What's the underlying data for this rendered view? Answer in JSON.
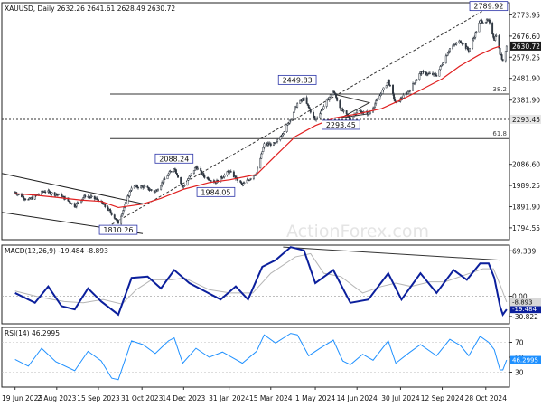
{
  "chart_data": [
    {
      "panel": "price",
      "type": "candlestick",
      "header": {
        "symbol": "XAUUSD",
        "timeframe": "Daily",
        "ohlc": "2632.26 2641.61 2628.49 2630.72",
        "text": "XAUUSD, Daily  2632.26 2641.61 2628.49 2630.72"
      },
      "watermark": "ActionForex.com",
      "y_axis": {
        "ylim": [
          1740,
          2830
        ],
        "ticks": [
          "2773.95",
          "2676.60",
          "2579.25",
          "2481.90",
          "2381.90",
          "2086.60",
          "1989.25",
          "1891.90",
          "1794.55"
        ],
        "tick_values": [
          2773.95,
          2676.6,
          2579.25,
          2481.9,
          2381.9,
          2086.6,
          1989.25,
          1891.9,
          1794.55
        ],
        "price_tags": [
          {
            "label": "2630.72",
            "value": 2630.72,
            "style": "dark"
          },
          {
            "label": "2293.45",
            "value": 2293.45,
            "style": "light"
          }
        ]
      },
      "key_levels": [
        {
          "label": "38.2",
          "value": 2410
        },
        {
          "label": "2293.45",
          "value": 2293.45
        },
        {
          "label": "61.8",
          "value": 2205
        }
      ],
      "annotations": [
        {
          "label": "2789.92",
          "date": "2024-10-31",
          "value": 2789.92
        },
        {
          "label": "2449.83",
          "date": "2024-04-12",
          "value": 2449.83
        },
        {
          "label": "2293.45",
          "date": "2024-05-28",
          "value": 2293.45
        },
        {
          "label": "2088.24",
          "date": "2023-12-04",
          "value": 2088.24
        },
        {
          "label": "1984.05",
          "date": "2024-01-17",
          "value": 1984.05
        },
        {
          "label": "1810.26",
          "date": "2023-10-06",
          "value": 1810.26
        }
      ],
      "series": [
        {
          "color": "#e02020",
          "points": [
            [
              "2023-06-19",
              1952
            ],
            [
              "2023-07-10",
              1945
            ],
            [
              "2023-08-01",
              1935
            ],
            [
              "2023-08-28",
              1922
            ],
            [
              "2023-09-18",
              1916
            ],
            [
              "2023-10-06",
              1888
            ],
            [
              "2023-10-31",
              1903
            ],
            [
              "2023-11-20",
              1930
            ],
            [
              "2023-12-14",
              1972
            ],
            [
              "2024-01-10",
              2003
            ],
            [
              "2024-02-01",
              2016
            ],
            [
              "2024-02-29",
              2040
            ],
            [
              "2024-03-20",
              2126
            ],
            [
              "2024-04-10",
              2215
            ],
            [
              "2024-05-01",
              2265
            ],
            [
              "2024-05-21",
              2300
            ],
            [
              "2024-06-14",
              2318
            ],
            [
              "2024-07-10",
              2343
            ],
            [
              "2024-07-30",
              2382
            ],
            [
              "2024-08-21",
              2430
            ],
            [
              "2024-09-12",
              2480
            ],
            [
              "2024-10-01",
              2540
            ],
            [
              "2024-10-21",
              2590
            ],
            [
              "2024-11-05",
              2620
            ],
            [
              "2024-11-12",
              2630
            ]
          ]
        },
        {
          "color": "#5f6b7a",
          "points": [
            [
              "2023-06-19",
              1958
            ],
            [
              "2023-07-03",
              1922
            ],
            [
              "2023-07-20",
              1964
            ],
            [
              "2023-08-07",
              1941
            ],
            [
              "2023-08-21",
              1896
            ],
            [
              "2023-09-01",
              1942
            ],
            [
              "2023-09-15",
              1924
            ],
            [
              "2023-09-28",
              1866
            ],
            [
              "2023-10-06",
              1818
            ],
            [
              "2023-10-20",
              1982
            ],
            [
              "2023-11-01",
              1984
            ],
            [
              "2023-11-14",
              1960
            ],
            [
              "2023-11-28",
              2042
            ],
            [
              "2023-12-04",
              2072
            ],
            [
              "2023-12-13",
              1980
            ],
            [
              "2023-12-27",
              2075
            ],
            [
              "2024-01-05",
              2030
            ],
            [
              "2024-01-17",
              2005
            ],
            [
              "2024-01-31",
              2055
            ],
            [
              "2024-02-14",
              1992
            ],
            [
              "2024-02-29",
              2048
            ],
            [
              "2024-03-08",
              2178
            ],
            [
              "2024-03-20",
              2180
            ],
            [
              "2024-04-01",
              2262
            ],
            [
              "2024-04-12",
              2365
            ],
            [
              "2024-04-19",
              2388
            ],
            [
              "2024-05-01",
              2290
            ],
            [
              "2024-05-20",
              2425
            ],
            [
              "2024-05-28",
              2340
            ],
            [
              "2024-06-07",
              2295
            ],
            [
              "2024-06-14",
              2332
            ],
            [
              "2024-06-27",
              2320
            ],
            [
              "2024-07-17",
              2470
            ],
            [
              "2024-07-25",
              2365
            ],
            [
              "2024-08-08",
              2425
            ],
            [
              "2024-08-20",
              2508
            ],
            [
              "2024-09-06",
              2497
            ],
            [
              "2024-09-20",
              2620
            ],
            [
              "2024-10-01",
              2655
            ],
            [
              "2024-10-10",
              2610
            ],
            [
              "2024-10-22",
              2745
            ],
            [
              "2024-10-31",
              2745
            ],
            [
              "2024-11-06",
              2662
            ],
            [
              "2024-11-08",
              2685
            ],
            [
              "2024-11-12",
              2595
            ],
            [
              "2024-11-14",
              2575
            ],
            [
              "2024-11-15",
              2565
            ],
            [
              "2024-11-19",
              2630
            ]
          ]
        }
      ]
    },
    {
      "panel": "macd",
      "type": "line",
      "label": "MACD(12,26,9) -19.484 -8.893",
      "y_axis": {
        "ylim": [
          -42,
          78
        ],
        "ticks": [
          "69.339",
          "0.00",
          "-30.822"
        ],
        "tick_values": [
          69.339,
          0,
          -30.822
        ],
        "price_tags": [
          {
            "label": "-19.484",
            "value": -19.484
          },
          {
            "label": "-8.893",
            "value": -8.893
          }
        ]
      },
      "series": [
        {
          "color": "#0b1f9c",
          "points": [
            [
              "2023-06-19",
              5
            ],
            [
              "2023-07-10",
              -10
            ],
            [
              "2023-07-24",
              15
            ],
            [
              "2023-08-07",
              -15
            ],
            [
              "2023-08-21",
              -20
            ],
            [
              "2023-09-04",
              12
            ],
            [
              "2023-09-18",
              -8
            ],
            [
              "2023-10-06",
              -28
            ],
            [
              "2023-10-20",
              28
            ],
            [
              "2023-11-06",
              30
            ],
            [
              "2023-11-20",
              12
            ],
            [
              "2023-12-04",
              40
            ],
            [
              "2023-12-20",
              20
            ],
            [
              "2024-01-05",
              8
            ],
            [
              "2024-01-22",
              -5
            ],
            [
              "2024-02-07",
              15
            ],
            [
              "2024-02-20",
              -5
            ],
            [
              "2024-03-06",
              45
            ],
            [
              "2024-03-20",
              55
            ],
            [
              "2024-04-05",
              75
            ],
            [
              "2024-04-19",
              70
            ],
            [
              "2024-05-01",
              20
            ],
            [
              "2024-05-20",
              40
            ],
            [
              "2024-06-07",
              -10
            ],
            [
              "2024-06-26",
              -5
            ],
            [
              "2024-07-17",
              35
            ],
            [
              "2024-07-31",
              -5
            ],
            [
              "2024-08-20",
              35
            ],
            [
              "2024-09-06",
              5
            ],
            [
              "2024-09-24",
              40
            ],
            [
              "2024-10-08",
              25
            ],
            [
              "2024-10-22",
              50
            ],
            [
              "2024-10-31",
              50
            ],
            [
              "2024-11-06",
              28
            ],
            [
              "2024-11-12",
              -15
            ],
            [
              "2024-11-15",
              -28
            ],
            [
              "2024-11-19",
              -20
            ]
          ]
        },
        {
          "color": "#b5b5b5",
          "points": [
            [
              "2023-06-19",
              8
            ],
            [
              "2023-07-17",
              -2
            ],
            [
              "2023-08-10",
              -8
            ],
            [
              "2023-08-30",
              -10
            ],
            [
              "2023-09-20",
              -5
            ],
            [
              "2023-10-10",
              -12
            ],
            [
              "2023-10-25",
              10
            ],
            [
              "2023-11-10",
              25
            ],
            [
              "2023-12-01",
              25
            ],
            [
              "2023-12-15",
              28
            ],
            [
              "2024-01-10",
              10
            ],
            [
              "2024-02-01",
              5
            ],
            [
              "2024-02-25",
              5
            ],
            [
              "2024-03-15",
              35
            ],
            [
              "2024-04-10",
              60
            ],
            [
              "2024-04-26",
              65
            ],
            [
              "2024-05-10",
              35
            ],
            [
              "2024-05-28",
              30
            ],
            [
              "2024-06-20",
              5
            ],
            [
              "2024-07-10",
              15
            ],
            [
              "2024-07-25",
              20
            ],
            [
              "2024-08-10",
              15
            ],
            [
              "2024-08-30",
              22
            ],
            [
              "2024-09-15",
              22
            ],
            [
              "2024-10-01",
              30
            ],
            [
              "2024-10-25",
              42
            ],
            [
              "2024-11-05",
              42
            ],
            [
              "2024-11-12",
              18
            ],
            [
              "2024-11-19",
              -8.893
            ]
          ]
        }
      ],
      "trendline": [
        [
          "2024-03-28",
          75
        ],
        [
          "2024-11-12",
          55
        ]
      ]
    },
    {
      "panel": "rsi",
      "type": "line",
      "label": "RSI(14) 46.2995",
      "y_axis": {
        "ylim": [
          10,
          90
        ],
        "ticks": [
          "70",
          "50",
          "30"
        ],
        "tick_values": [
          70,
          50,
          30
        ],
        "price_tags": [
          {
            "label": "46.2995",
            "value": 46.2995
          }
        ]
      },
      "series": [
        {
          "color": "#1e90ff",
          "points": [
            [
              "2023-06-19",
              47
            ],
            [
              "2023-07-03",
              38
            ],
            [
              "2023-07-17",
              62
            ],
            [
              "2023-08-01",
              44
            ],
            [
              "2023-08-21",
              32
            ],
            [
              "2023-09-04",
              58
            ],
            [
              "2023-09-18",
              45
            ],
            [
              "2023-09-29",
              22
            ],
            [
              "2023-10-06",
              20
            ],
            [
              "2023-10-20",
              72
            ],
            [
              "2023-11-01",
              67
            ],
            [
              "2023-11-14",
              55
            ],
            [
              "2023-11-28",
              72
            ],
            [
              "2023-12-04",
              76
            ],
            [
              "2023-12-13",
              42
            ],
            [
              "2023-12-27",
              62
            ],
            [
              "2024-01-10",
              50
            ],
            [
              "2024-01-24",
              57
            ],
            [
              "2024-02-14",
              42
            ],
            [
              "2024-02-29",
              58
            ],
            [
              "2024-03-08",
              80
            ],
            [
              "2024-03-20",
              69
            ],
            [
              "2024-04-05",
              82
            ],
            [
              "2024-04-12",
              80
            ],
            [
              "2024-04-24",
              52
            ],
            [
              "2024-05-06",
              62
            ],
            [
              "2024-05-20",
              73
            ],
            [
              "2024-05-30",
              45
            ],
            [
              "2024-06-07",
              40
            ],
            [
              "2024-06-20",
              54
            ],
            [
              "2024-07-01",
              46
            ],
            [
              "2024-07-17",
              72
            ],
            [
              "2024-07-25",
              42
            ],
            [
              "2024-08-08",
              56
            ],
            [
              "2024-08-20",
              67
            ],
            [
              "2024-09-06",
              52
            ],
            [
              "2024-09-20",
              74
            ],
            [
              "2024-10-01",
              66
            ],
            [
              "2024-10-10",
              52
            ],
            [
              "2024-10-22",
              78
            ],
            [
              "2024-10-31",
              70
            ],
            [
              "2024-11-06",
              60
            ],
            [
              "2024-11-12",
              33
            ],
            [
              "2024-11-15",
              33
            ],
            [
              "2024-11-19",
              46.3
            ]
          ]
        }
      ]
    },
    {
      "panel": "x_axis",
      "categories": [
        "19 Jun 2023",
        "2 Aug 2023",
        "15 Sep 2023",
        "31 Oct 2023",
        "14 Dec 2023",
        "31 Jan 2024",
        "15 Mar 2024",
        "1 May 2024",
        "14 Jun 2024",
        "30 Jul 2024",
        "12 Sep 2024",
        "28 Oct 2024"
      ],
      "dates": [
        "2023-06-19",
        "2023-08-02",
        "2023-09-15",
        "2023-10-31",
        "2023-12-14",
        "2024-01-31",
        "2024-03-15",
        "2024-05-01",
        "2024-06-14",
        "2024-07-30",
        "2024-09-12",
        "2024-10-28"
      ],
      "range": [
        "2023-06-05",
        "2024-11-22"
      ]
    }
  ]
}
